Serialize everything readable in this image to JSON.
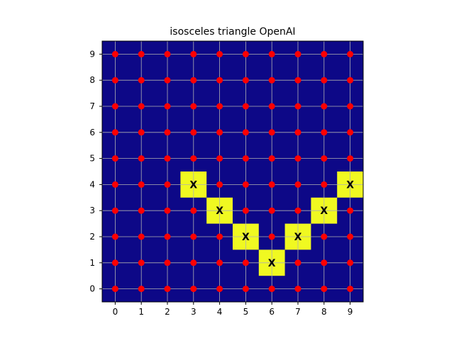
{
  "chart_data": {
    "type": "heatmap",
    "title": "isosceles triangle OpenAI",
    "xlabel": "",
    "ylabel": "",
    "x": [
      0,
      1,
      2,
      3,
      4,
      5,
      6,
      7,
      8,
      9
    ],
    "y": [
      0,
      1,
      2,
      3,
      4,
      5,
      6,
      7,
      8,
      9
    ],
    "x_ticks": [
      "0",
      "1",
      "2",
      "3",
      "4",
      "5",
      "6",
      "7",
      "8",
      "9"
    ],
    "y_ticks": [
      "0",
      "1",
      "2",
      "3",
      "4",
      "5",
      "6",
      "7",
      "8",
      "9"
    ],
    "xlim": [
      -0.5,
      9.5
    ],
    "ylim": [
      -0.5,
      9.5
    ],
    "grid": true,
    "background_color": "#0d0887",
    "highlight_color": "#f0f921",
    "point_color": "#ff0000",
    "highlighted_cells": [
      {
        "x": 3,
        "y": 4,
        "label": "X"
      },
      {
        "x": 4,
        "y": 3,
        "label": "X"
      },
      {
        "x": 5,
        "y": 2,
        "label": "X"
      },
      {
        "x": 6,
        "y": 1,
        "label": "X"
      },
      {
        "x": 7,
        "y": 2,
        "label": "X"
      },
      {
        "x": 8,
        "y": 3,
        "label": "X"
      },
      {
        "x": 9,
        "y": 4,
        "label": "X"
      }
    ]
  }
}
